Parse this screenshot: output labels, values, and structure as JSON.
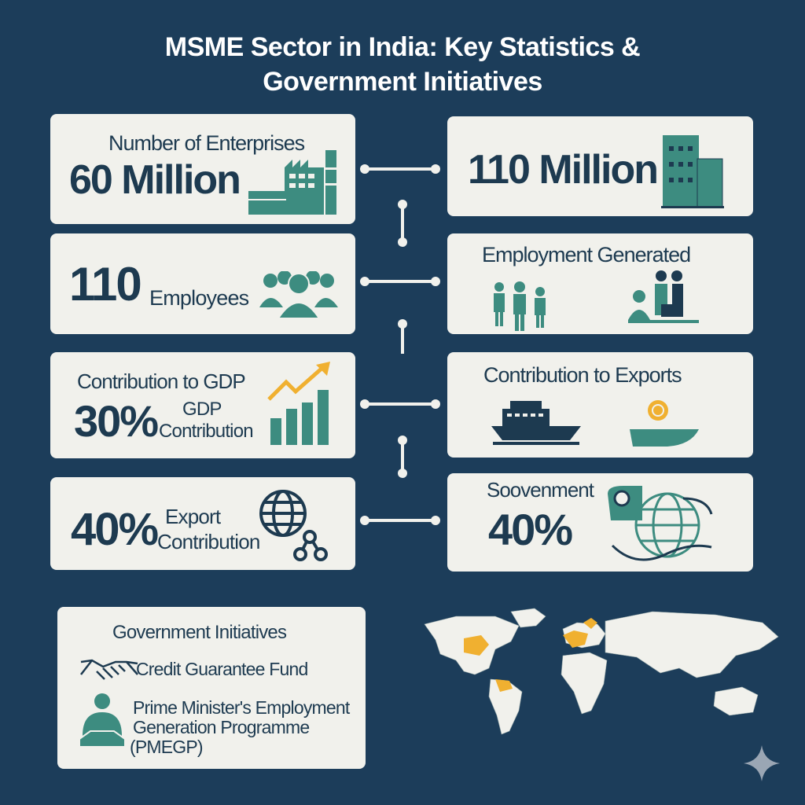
{
  "title_line1": "MSME Sector in India: Key Statistics &",
  "title_line2": "Government Initiatives",
  "cards": {
    "enterprises": {
      "label": "Number of Enterprises",
      "value": "60 Million",
      "icon": "factory-icon"
    },
    "million110": {
      "value": "110 Million",
      "icon": "office-building-icon"
    },
    "employees": {
      "value": "110",
      "label": "Employees",
      "icon": "group-people-icon"
    },
    "employment": {
      "label": "Employment Generated",
      "icon": "workers-icon"
    },
    "gdp": {
      "label": "Contribution to GDP",
      "value": "30%",
      "sub1": "GDP",
      "sub2": "Contribution",
      "icon": "bar-chart-growth-icon"
    },
    "exports": {
      "label": "Contribution to Exports",
      "icon": "cargo-ship-icon"
    },
    "export40": {
      "value": "40%",
      "sub1": "Export",
      "sub2": "Contribution",
      "icon": "globe-network-icon"
    },
    "soovenment": {
      "label": "Soovenment",
      "value": "40%",
      "icon": "globe-location-icon"
    }
  },
  "initiatives": {
    "heading": "Government Initiatives",
    "items": [
      {
        "label": "Credit Guarantee Fund",
        "icon": "handshake-icon"
      },
      {
        "line1": "Prime Minister's Employment",
        "line2": "Generation Programme",
        "line3": "(PMEGP)",
        "icon": "person-handshake-icon"
      }
    ]
  },
  "colors": {
    "background": "#1c3d5a",
    "card": "#f1f1ec",
    "text": "#1d3a50",
    "teal": "#3d8c80",
    "accent": "#f0b030"
  }
}
